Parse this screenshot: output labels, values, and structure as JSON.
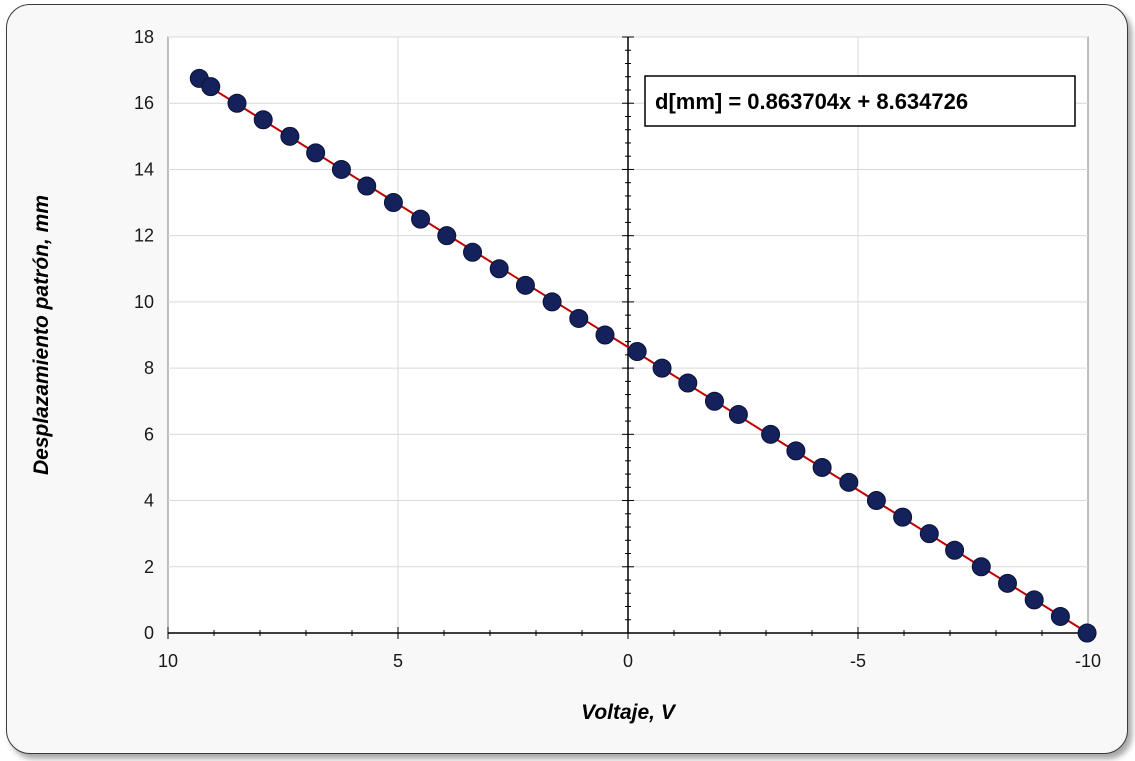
{
  "chart_data": {
    "type": "scatter",
    "xlabel": "Voltaje, V",
    "ylabel": "Desplazamiento patrón, mm",
    "xlim": [
      10,
      -10
    ],
    "ylim": [
      0,
      18
    ],
    "x_reversed": true,
    "x_ticks": [
      10,
      5,
      0,
      -5,
      -10
    ],
    "y_ticks": [
      0,
      2,
      4,
      6,
      8,
      10,
      12,
      14,
      16,
      18
    ],
    "grid": true,
    "annotation": "d[mm] = 0.863704x + 8.634726",
    "trendline": {
      "slope": 0.863704,
      "intercept": 8.634726,
      "color": "#c00000"
    },
    "marker_color": "#14215a",
    "points": [
      {
        "x": 9.32,
        "y": 16.75
      },
      {
        "x": 9.07,
        "y": 16.5
      },
      {
        "x": 8.5,
        "y": 16.0
      },
      {
        "x": 7.93,
        "y": 15.5
      },
      {
        "x": 7.35,
        "y": 15.0
      },
      {
        "x": 6.79,
        "y": 14.5
      },
      {
        "x": 6.23,
        "y": 14.0
      },
      {
        "x": 5.68,
        "y": 13.5
      },
      {
        "x": 5.1,
        "y": 13.0
      },
      {
        "x": 4.51,
        "y": 12.5
      },
      {
        "x": 3.94,
        "y": 12.0
      },
      {
        "x": 3.38,
        "y": 11.5
      },
      {
        "x": 2.8,
        "y": 11.0
      },
      {
        "x": 2.23,
        "y": 10.5
      },
      {
        "x": 1.65,
        "y": 10.0
      },
      {
        "x": 1.07,
        "y": 9.5
      },
      {
        "x": 0.5,
        "y": 9.0
      },
      {
        "x": -0.2,
        "y": 8.5
      },
      {
        "x": -0.74,
        "y": 8.0
      },
      {
        "x": -1.3,
        "y": 7.55
      },
      {
        "x": -1.88,
        "y": 7.0
      },
      {
        "x": -2.4,
        "y": 6.6
      },
      {
        "x": -3.1,
        "y": 6.0
      },
      {
        "x": -3.65,
        "y": 5.5
      },
      {
        "x": -4.22,
        "y": 5.0
      },
      {
        "x": -4.8,
        "y": 4.55
      },
      {
        "x": -5.4,
        "y": 4.0
      },
      {
        "x": -5.97,
        "y": 3.5
      },
      {
        "x": -6.55,
        "y": 3.0
      },
      {
        "x": -7.1,
        "y": 2.5
      },
      {
        "x": -7.68,
        "y": 2.0
      },
      {
        "x": -8.25,
        "y": 1.5
      },
      {
        "x": -8.83,
        "y": 1.0
      },
      {
        "x": -9.4,
        "y": 0.5
      },
      {
        "x": -9.98,
        "y": 0.0
      }
    ]
  }
}
